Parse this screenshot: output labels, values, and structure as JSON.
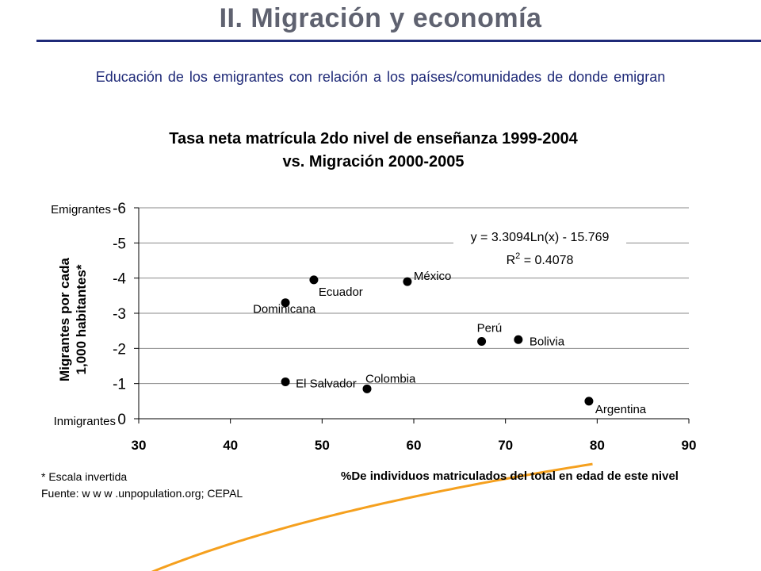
{
  "slide": {
    "title": "II. Migración y economía",
    "subtitle": "Educación de los emigrantes con relación a los países/comunidades de donde emigran"
  },
  "colors": {
    "title": "#5f6270",
    "accent": "#1f2a78",
    "trend": "#f5a01e",
    "points": "#000000"
  },
  "chart_data": {
    "type": "scatter",
    "title": [
      "Tasa neta matrícula 2do nivel de enseñanza 1999-2004",
      "vs. Migración 2000-2005"
    ],
    "xlabel": "%De individuos matriculados del total en edad de este nivel",
    "ylabel": [
      "Migrantes por cada",
      "1,000 habitantes*"
    ],
    "xlim": [
      30,
      90
    ],
    "ylim": [
      -6,
      0
    ],
    "y_inverted": true,
    "x_ticks": [
      "30",
      "40",
      "50",
      "60",
      "70",
      "80",
      "90"
    ],
    "y_ticks": [
      "-6",
      "-5",
      "-4",
      "-3",
      "-2",
      "-1",
      "0"
    ],
    "y_end_labels": {
      "top": "Emigrantes",
      "bottom": "Inmigrantes"
    },
    "grid": "horizontal",
    "points": [
      {
        "label": "Dominicana",
        "x": 46.0,
        "y": -3.3
      },
      {
        "label": "Ecuador",
        "x": 49.1,
        "y": -3.95
      },
      {
        "label": "México",
        "x": 59.3,
        "y": -3.9
      },
      {
        "label": "Perú",
        "x": 67.4,
        "y": -2.2
      },
      {
        "label": "Bolivia",
        "x": 71.4,
        "y": -2.25
      },
      {
        "label": "El Salvador",
        "x": 46.0,
        "y": -1.05
      },
      {
        "label": "Colombia",
        "x": 54.9,
        "y": -0.85
      },
      {
        "label": "Argentina",
        "x": 79.1,
        "y": -0.5
      }
    ],
    "trendline": {
      "equation": "y = 3.3094Ln(x) - 15.769",
      "r2_label": "R",
      "r2_sup": "2",
      "r2_value": " = 0.4078",
      "a": 3.3094,
      "b": -15.769,
      "x_range": [
        30,
        79.5
      ]
    },
    "notes": [
      "* Escala invertida",
      "Fuente:  w w w .unpopulation.org; CEPAL"
    ]
  }
}
